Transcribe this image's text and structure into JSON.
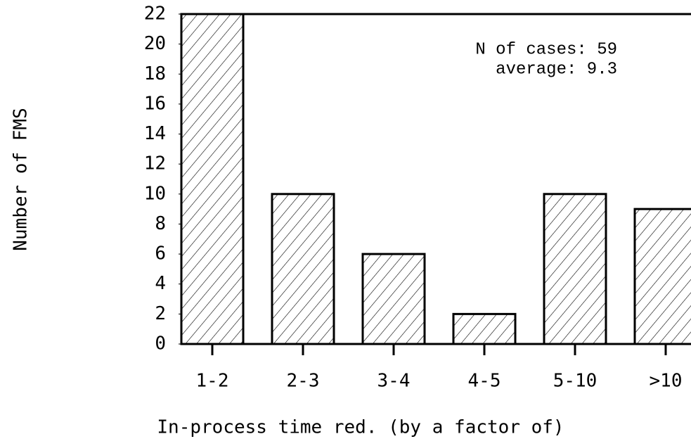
{
  "chart_data": {
    "type": "bar",
    "x_label": "In-process time red. (by a factor of)",
    "y_label": "Number of FMS",
    "categories": [
      "1-2",
      "2-3",
      "3-4",
      "4-5",
      "5-10",
      ">10"
    ],
    "values": [
      22,
      10,
      6,
      2,
      10,
      9
    ],
    "color": "#000000",
    "ylim": [
      0,
      22
    ],
    "yticks": [
      0,
      2,
      4,
      6,
      8,
      10,
      12,
      14,
      16,
      18,
      20,
      22
    ],
    "grid": false,
    "annotations": [
      "N of cases: 59",
      "average: 9.3"
    ]
  }
}
